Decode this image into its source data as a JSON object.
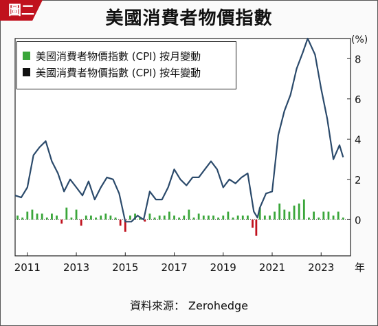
{
  "badge": "圖二",
  "title": "美國消費者物價指數",
  "source": "資料來源： Zerohedge",
  "chart_data": {
    "type": "line",
    "title": "美國消費者物價指數",
    "y_unit": "(%)",
    "x_unit": "年",
    "xlim": [
      2010.5,
      2024.2
    ],
    "ylim": [
      -1.8,
      9.0
    ],
    "yticks": [
      0,
      2,
      4,
      6,
      8
    ],
    "xticks": [
      2011,
      2013,
      2015,
      2017,
      2019,
      2021,
      2023
    ],
    "legend_position": "top-left",
    "series": [
      {
        "name": "美國消費者物價指數 (CPI) 按年變動",
        "type": "line",
        "color": "#2b4a6b",
        "x": [
          2010.5,
          2010.75,
          2011.0,
          2011.25,
          2011.5,
          2011.75,
          2012.0,
          2012.25,
          2012.5,
          2012.75,
          2013.0,
          2013.25,
          2013.5,
          2013.75,
          2014.0,
          2014.25,
          2014.5,
          2014.75,
          2015.0,
          2015.25,
          2015.5,
          2015.75,
          2016.0,
          2016.25,
          2016.5,
          2016.75,
          2017.0,
          2017.25,
          2017.5,
          2017.75,
          2018.0,
          2018.25,
          2018.5,
          2018.75,
          2019.0,
          2019.25,
          2019.5,
          2019.75,
          2020.0,
          2020.25,
          2020.4,
          2020.5,
          2020.75,
          2021.0,
          2021.25,
          2021.5,
          2021.75,
          2022.0,
          2022.25,
          2022.45,
          2022.75,
          2023.0,
          2023.25,
          2023.5,
          2023.75,
          2023.9
        ],
        "y": [
          1.2,
          1.1,
          1.6,
          3.2,
          3.6,
          3.9,
          2.9,
          2.3,
          1.4,
          2.0,
          1.6,
          1.2,
          1.9,
          1.0,
          1.6,
          2.1,
          2.0,
          1.3,
          -0.1,
          -0.1,
          0.2,
          0.0,
          1.4,
          1.0,
          1.0,
          1.6,
          2.5,
          2.0,
          1.7,
          2.1,
          2.1,
          2.5,
          2.9,
          2.5,
          1.6,
          2.0,
          1.8,
          2.1,
          2.3,
          0.4,
          0.1,
          0.6,
          1.3,
          1.4,
          4.2,
          5.4,
          6.2,
          7.5,
          8.3,
          9.0,
          8.2,
          6.5,
          5.0,
          3.0,
          3.7,
          3.1
        ]
      },
      {
        "name": "美國消費者物價指數 (CPI) 按月變動",
        "type": "bar",
        "color": "#3aa63a",
        "negative_color": "#c0111d",
        "x": [
          2010.6,
          2010.8,
          2011.0,
          2011.2,
          2011.4,
          2011.6,
          2011.8,
          2012.0,
          2012.2,
          2012.4,
          2012.6,
          2012.8,
          2013.0,
          2013.2,
          2013.4,
          2013.6,
          2013.8,
          2014.0,
          2014.2,
          2014.4,
          2014.6,
          2014.8,
          2015.0,
          2015.2,
          2015.4,
          2015.6,
          2015.8,
          2016.0,
          2016.2,
          2016.4,
          2016.6,
          2016.8,
          2017.0,
          2017.2,
          2017.4,
          2017.6,
          2017.8,
          2018.0,
          2018.2,
          2018.4,
          2018.6,
          2018.8,
          2019.0,
          2019.2,
          2019.4,
          2019.6,
          2019.8,
          2020.0,
          2020.2,
          2020.35,
          2020.5,
          2020.7,
          2020.9,
          2021.1,
          2021.3,
          2021.5,
          2021.7,
          2021.9,
          2022.1,
          2022.3,
          2022.5,
          2022.7,
          2022.9,
          2023.1,
          2023.3,
          2023.5,
          2023.7,
          2023.9
        ],
        "y": [
          0.2,
          0.1,
          0.4,
          0.5,
          0.3,
          0.3,
          0.1,
          0.3,
          0.2,
          -0.2,
          0.6,
          0.1,
          0.5,
          -0.3,
          0.2,
          0.2,
          0.1,
          0.2,
          0.3,
          0.2,
          0.1,
          -0.3,
          -0.6,
          0.2,
          0.3,
          0.1,
          -0.1,
          0.3,
          0.1,
          0.2,
          0.2,
          0.4,
          0.2,
          0.1,
          0.2,
          0.5,
          0.1,
          0.3,
          0.2,
          0.2,
          0.2,
          0.1,
          0.2,
          0.4,
          0.1,
          0.2,
          0.2,
          0.2,
          -0.4,
          -0.8,
          0.6,
          0.2,
          0.2,
          0.4,
          0.8,
          0.5,
          0.4,
          0.7,
          0.8,
          1.0,
          0.1,
          0.4,
          0.1,
          0.4,
          0.4,
          0.2,
          0.4,
          0.1
        ]
      }
    ]
  }
}
